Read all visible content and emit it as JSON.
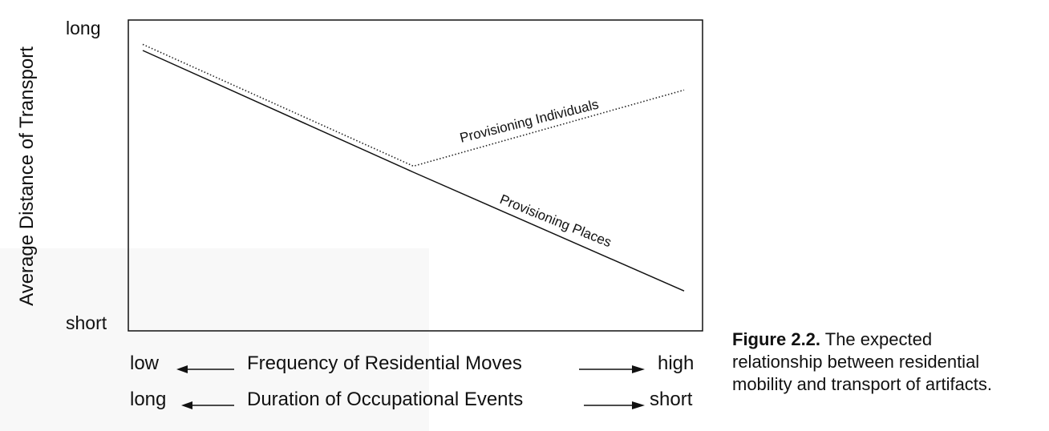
{
  "chart_data": {
    "type": "line",
    "ylabel": "Average Distance of Transport",
    "y_ticks": [
      "long",
      "short"
    ],
    "x_axes": [
      {
        "low": "low",
        "label": "Frequency of Residential Moves",
        "high": "high"
      },
      {
        "low": "long",
        "label": "Duration of Occupational Events",
        "high": "short"
      }
    ],
    "xlim": [
      0,
      1
    ],
    "ylim": [
      0,
      1
    ],
    "series": [
      {
        "name": "Provisioning Individuals",
        "style": "dotted",
        "color": "#222222",
        "x": [
          0,
          0.5,
          1
        ],
        "y": [
          0.92,
          0.52,
          0.77
        ]
      },
      {
        "name": "Provisioning Places",
        "style": "solid",
        "color": "#111111",
        "x": [
          0,
          0.5,
          1
        ],
        "y": [
          0.9,
          0.5,
          0.11
        ]
      }
    ]
  },
  "caption": {
    "label": "Figure 2.2.",
    "text_line1": " The expected",
    "text_line2": "relationship between residential",
    "text_line3": "mobility and transport of artifacts."
  }
}
